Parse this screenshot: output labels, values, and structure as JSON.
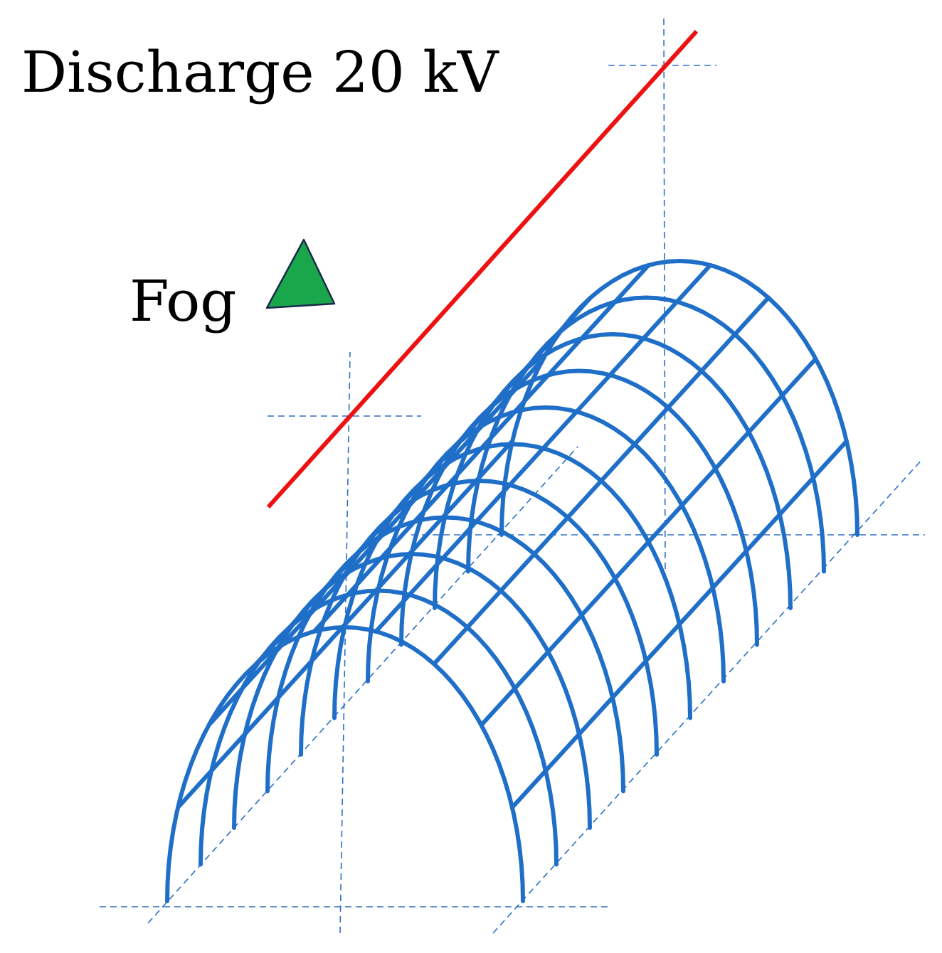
{
  "labels": {
    "title": "Discharge 20 kV",
    "fog": "Fog"
  },
  "colors": {
    "tunnel_frame": "#1f6fc8",
    "guide_lines": "#2d6fc4",
    "discharge_wire": "#ee1111",
    "fog_marker_fill": "#1aa64a",
    "fog_marker_stroke": "#1a2a4a"
  },
  "elements": {
    "tunnel": "greenhouse-tunnel-frame",
    "wire": "discharge-wire",
    "marker": "fog-marker-triangle"
  }
}
